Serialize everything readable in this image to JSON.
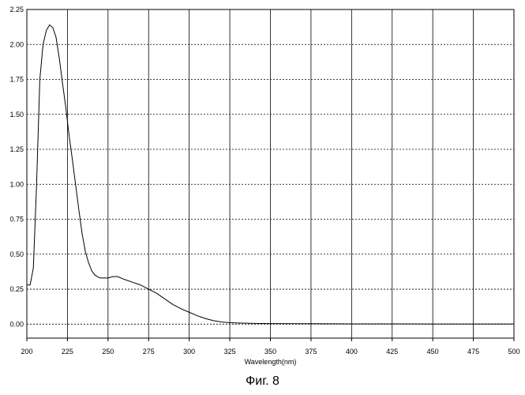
{
  "caption": "Фиг. 8",
  "chart_data": {
    "type": "line",
    "xlabel": "Wavelength(nm)",
    "ylabel": "",
    "xlim": [
      200,
      500
    ],
    "ylim": [
      -0.1,
      2.25
    ],
    "x_ticks": [
      200,
      225,
      250,
      275,
      300,
      325,
      350,
      375,
      400,
      425,
      450,
      475,
      500
    ],
    "y_ticks": [
      0.0,
      0.25,
      0.5,
      0.75,
      1.0,
      1.25,
      1.5,
      1.75,
      2.0,
      2.25
    ],
    "x_tick_labels": [
      "200",
      "225",
      "250",
      "275",
      "300",
      "325",
      "350",
      "375",
      "400",
      "425",
      "450",
      "475",
      "500"
    ],
    "y_tick_labels": [
      "0.00",
      "0.25",
      "0.50",
      "0.75",
      "1.00",
      "1.25",
      "1.50",
      "1.75",
      "2.00",
      "2.25"
    ],
    "grid": true,
    "series": [
      {
        "x": [
          200,
          202,
          204,
          206,
          208,
          210,
          212,
          214,
          216,
          218,
          220,
          222,
          224,
          226,
          228,
          230,
          232,
          234,
          236,
          238,
          240,
          242,
          245,
          248,
          250,
          253,
          256,
          260,
          265,
          270,
          275,
          280,
          285,
          290,
          295,
          300,
          305,
          310,
          315,
          320,
          325,
          330,
          340,
          350,
          375,
          400,
          425,
          450,
          475,
          500
        ],
        "y": [
          0.28,
          0.28,
          0.4,
          1.0,
          1.75,
          2.0,
          2.1,
          2.14,
          2.12,
          2.05,
          1.9,
          1.72,
          1.55,
          1.35,
          1.18,
          1.0,
          0.82,
          0.65,
          0.52,
          0.44,
          0.38,
          0.35,
          0.33,
          0.33,
          0.33,
          0.34,
          0.34,
          0.32,
          0.3,
          0.28,
          0.25,
          0.22,
          0.18,
          0.14,
          0.11,
          0.085,
          0.06,
          0.04,
          0.025,
          0.015,
          0.01,
          0.008,
          0.005,
          0.004,
          0.003,
          0.002,
          0.002,
          0.001,
          0.001,
          0.001
        ]
      }
    ]
  }
}
